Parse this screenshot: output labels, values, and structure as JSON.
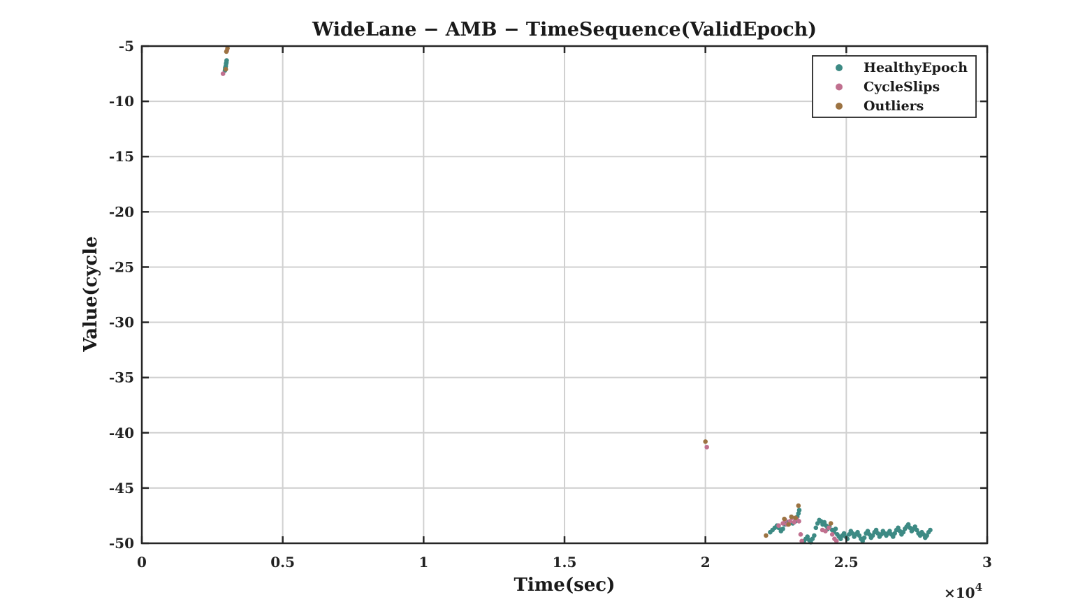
{
  "chart_data": {
    "type": "scatter",
    "title": "WideLane − AMB − TimeSequence(ValidEpoch)",
    "xlabel": "Time(sec)",
    "ylabel": "Value(cycle",
    "x_exponent_label": "×10",
    "x_exponent_power": "4",
    "xlim": [
      0,
      30000
    ],
    "ylim": [
      -50,
      -5
    ],
    "grid": true,
    "legend_position": "top-right",
    "x_ticks": [
      {
        "value": 0,
        "label": "0"
      },
      {
        "value": 5000,
        "label": "0.5"
      },
      {
        "value": 10000,
        "label": "1"
      },
      {
        "value": 15000,
        "label": "1.5"
      },
      {
        "value": 20000,
        "label": "2"
      },
      {
        "value": 25000,
        "label": "2.5"
      },
      {
        "value": 30000,
        "label": "3"
      }
    ],
    "y_ticks": [
      {
        "value": -5,
        "label": "-5"
      },
      {
        "value": -10,
        "label": "-10"
      },
      {
        "value": -15,
        "label": "-15"
      },
      {
        "value": -20,
        "label": "-20"
      },
      {
        "value": -25,
        "label": "-25"
      },
      {
        "value": -30,
        "label": "-30"
      },
      {
        "value": -35,
        "label": "-35"
      },
      {
        "value": -40,
        "label": "-40"
      },
      {
        "value": -45,
        "label": "-45"
      },
      {
        "value": -50,
        "label": "-50"
      }
    ],
    "series": [
      {
        "name": "HealthyEpoch",
        "color": "#3d8a84",
        "points": [
          [
            2950,
            -7.2
          ],
          [
            2960,
            -7.0
          ],
          [
            2970,
            -6.9
          ],
          [
            2980,
            -6.8
          ],
          [
            2990,
            -6.6
          ],
          [
            3000,
            -6.5
          ],
          [
            3010,
            -6.3
          ],
          [
            22300,
            -49.0
          ],
          [
            22380,
            -48.8
          ],
          [
            22460,
            -48.6
          ],
          [
            22540,
            -48.4
          ],
          [
            22600,
            -48.6
          ],
          [
            22680,
            -48.9
          ],
          [
            22750,
            -48.7
          ],
          [
            22820,
            -48.3
          ],
          [
            22900,
            -48.1
          ],
          [
            23100,
            -48.2
          ],
          [
            23200,
            -48.0
          ],
          [
            23260,
            -47.6
          ],
          [
            23300,
            -47.3
          ],
          [
            23330,
            -47.0
          ],
          [
            23500,
            -49.8
          ],
          [
            23560,
            -49.6
          ],
          [
            23620,
            -49.4
          ],
          [
            23680,
            -49.7
          ],
          [
            23740,
            -49.9
          ],
          [
            23800,
            -49.6
          ],
          [
            23860,
            -49.3
          ],
          [
            23920,
            -48.6
          ],
          [
            23980,
            -48.2
          ],
          [
            24040,
            -47.9
          ],
          [
            24100,
            -48.0
          ],
          [
            24160,
            -48.3
          ],
          [
            24220,
            -48.1
          ],
          [
            24280,
            -48.4
          ],
          [
            24340,
            -48.7
          ],
          [
            24400,
            -48.5
          ],
          [
            24500,
            -48.8
          ],
          [
            24560,
            -49.0
          ],
          [
            24620,
            -48.7
          ],
          [
            24680,
            -49.2
          ],
          [
            24740,
            -49.4
          ],
          [
            24800,
            -49.6
          ],
          [
            24860,
            -49.3
          ],
          [
            24920,
            -49.1
          ],
          [
            24980,
            -49.4
          ],
          [
            25040,
            -49.6
          ],
          [
            25100,
            -49.2
          ],
          [
            25160,
            -48.9
          ],
          [
            25220,
            -49.1
          ],
          [
            25280,
            -49.4
          ],
          [
            25340,
            -49.2
          ],
          [
            25400,
            -49.0
          ],
          [
            25460,
            -49.3
          ],
          [
            25520,
            -49.6
          ],
          [
            25580,
            -49.8
          ],
          [
            25640,
            -49.5
          ],
          [
            25700,
            -49.1
          ],
          [
            25760,
            -48.9
          ],
          [
            25820,
            -49.2
          ],
          [
            25880,
            -49.5
          ],
          [
            25940,
            -49.3
          ],
          [
            26000,
            -49.0
          ],
          [
            26060,
            -48.8
          ],
          [
            26120,
            -49.1
          ],
          [
            26180,
            -49.4
          ],
          [
            26240,
            -49.2
          ],
          [
            26300,
            -48.9
          ],
          [
            26360,
            -49.1
          ],
          [
            26420,
            -49.3
          ],
          [
            26480,
            -49.1
          ],
          [
            26540,
            -48.9
          ],
          [
            26600,
            -49.2
          ],
          [
            26660,
            -49.4
          ],
          [
            26720,
            -49.1
          ],
          [
            26780,
            -48.8
          ],
          [
            26840,
            -48.6
          ],
          [
            26900,
            -48.9
          ],
          [
            26960,
            -49.2
          ],
          [
            27020,
            -49.0
          ],
          [
            27080,
            -48.7
          ],
          [
            27140,
            -48.5
          ],
          [
            27200,
            -48.3
          ],
          [
            27260,
            -48.6
          ],
          [
            27320,
            -48.9
          ],
          [
            27380,
            -48.7
          ],
          [
            27440,
            -48.5
          ],
          [
            27500,
            -48.8
          ],
          [
            27560,
            -49.1
          ],
          [
            27620,
            -49.3
          ],
          [
            27680,
            -49.0
          ],
          [
            27740,
            -49.2
          ],
          [
            27800,
            -49.5
          ],
          [
            27860,
            -49.3
          ],
          [
            27920,
            -49.0
          ],
          [
            27980,
            -48.8
          ]
        ]
      },
      {
        "name": "CycleSlips",
        "color": "#c0708f",
        "points": [
          [
            2880,
            -7.5
          ],
          [
            3020,
            -5.4
          ],
          [
            20050,
            -41.3
          ],
          [
            22600,
            -48.4
          ],
          [
            22750,
            -48.2
          ],
          [
            22830,
            -47.9
          ],
          [
            22900,
            -48.3
          ],
          [
            23000,
            -48.0
          ],
          [
            23080,
            -47.7
          ],
          [
            23150,
            -48.1
          ],
          [
            23240,
            -47.8
          ],
          [
            23320,
            -48.0
          ],
          [
            23380,
            -49.2
          ],
          [
            23420,
            -49.8
          ],
          [
            24150,
            -48.8
          ],
          [
            24260,
            -48.9
          ],
          [
            24380,
            -48.6
          ],
          [
            24500,
            -49.2
          ],
          [
            24580,
            -49.6
          ],
          [
            24650,
            -49.8
          ]
        ]
      },
      {
        "name": "Outliers",
        "color": "#9c7342",
        "points": [
          [
            2980,
            -7.1
          ],
          [
            3000,
            -5.5
          ],
          [
            3040,
            -5.2
          ],
          [
            20000,
            -40.8
          ],
          [
            22150,
            -49.3
          ],
          [
            22800,
            -47.8
          ],
          [
            22950,
            -48.3
          ],
          [
            23050,
            -47.6
          ],
          [
            23200,
            -47.7
          ],
          [
            23300,
            -46.6
          ],
          [
            24450,
            -48.2
          ]
        ]
      }
    ]
  }
}
